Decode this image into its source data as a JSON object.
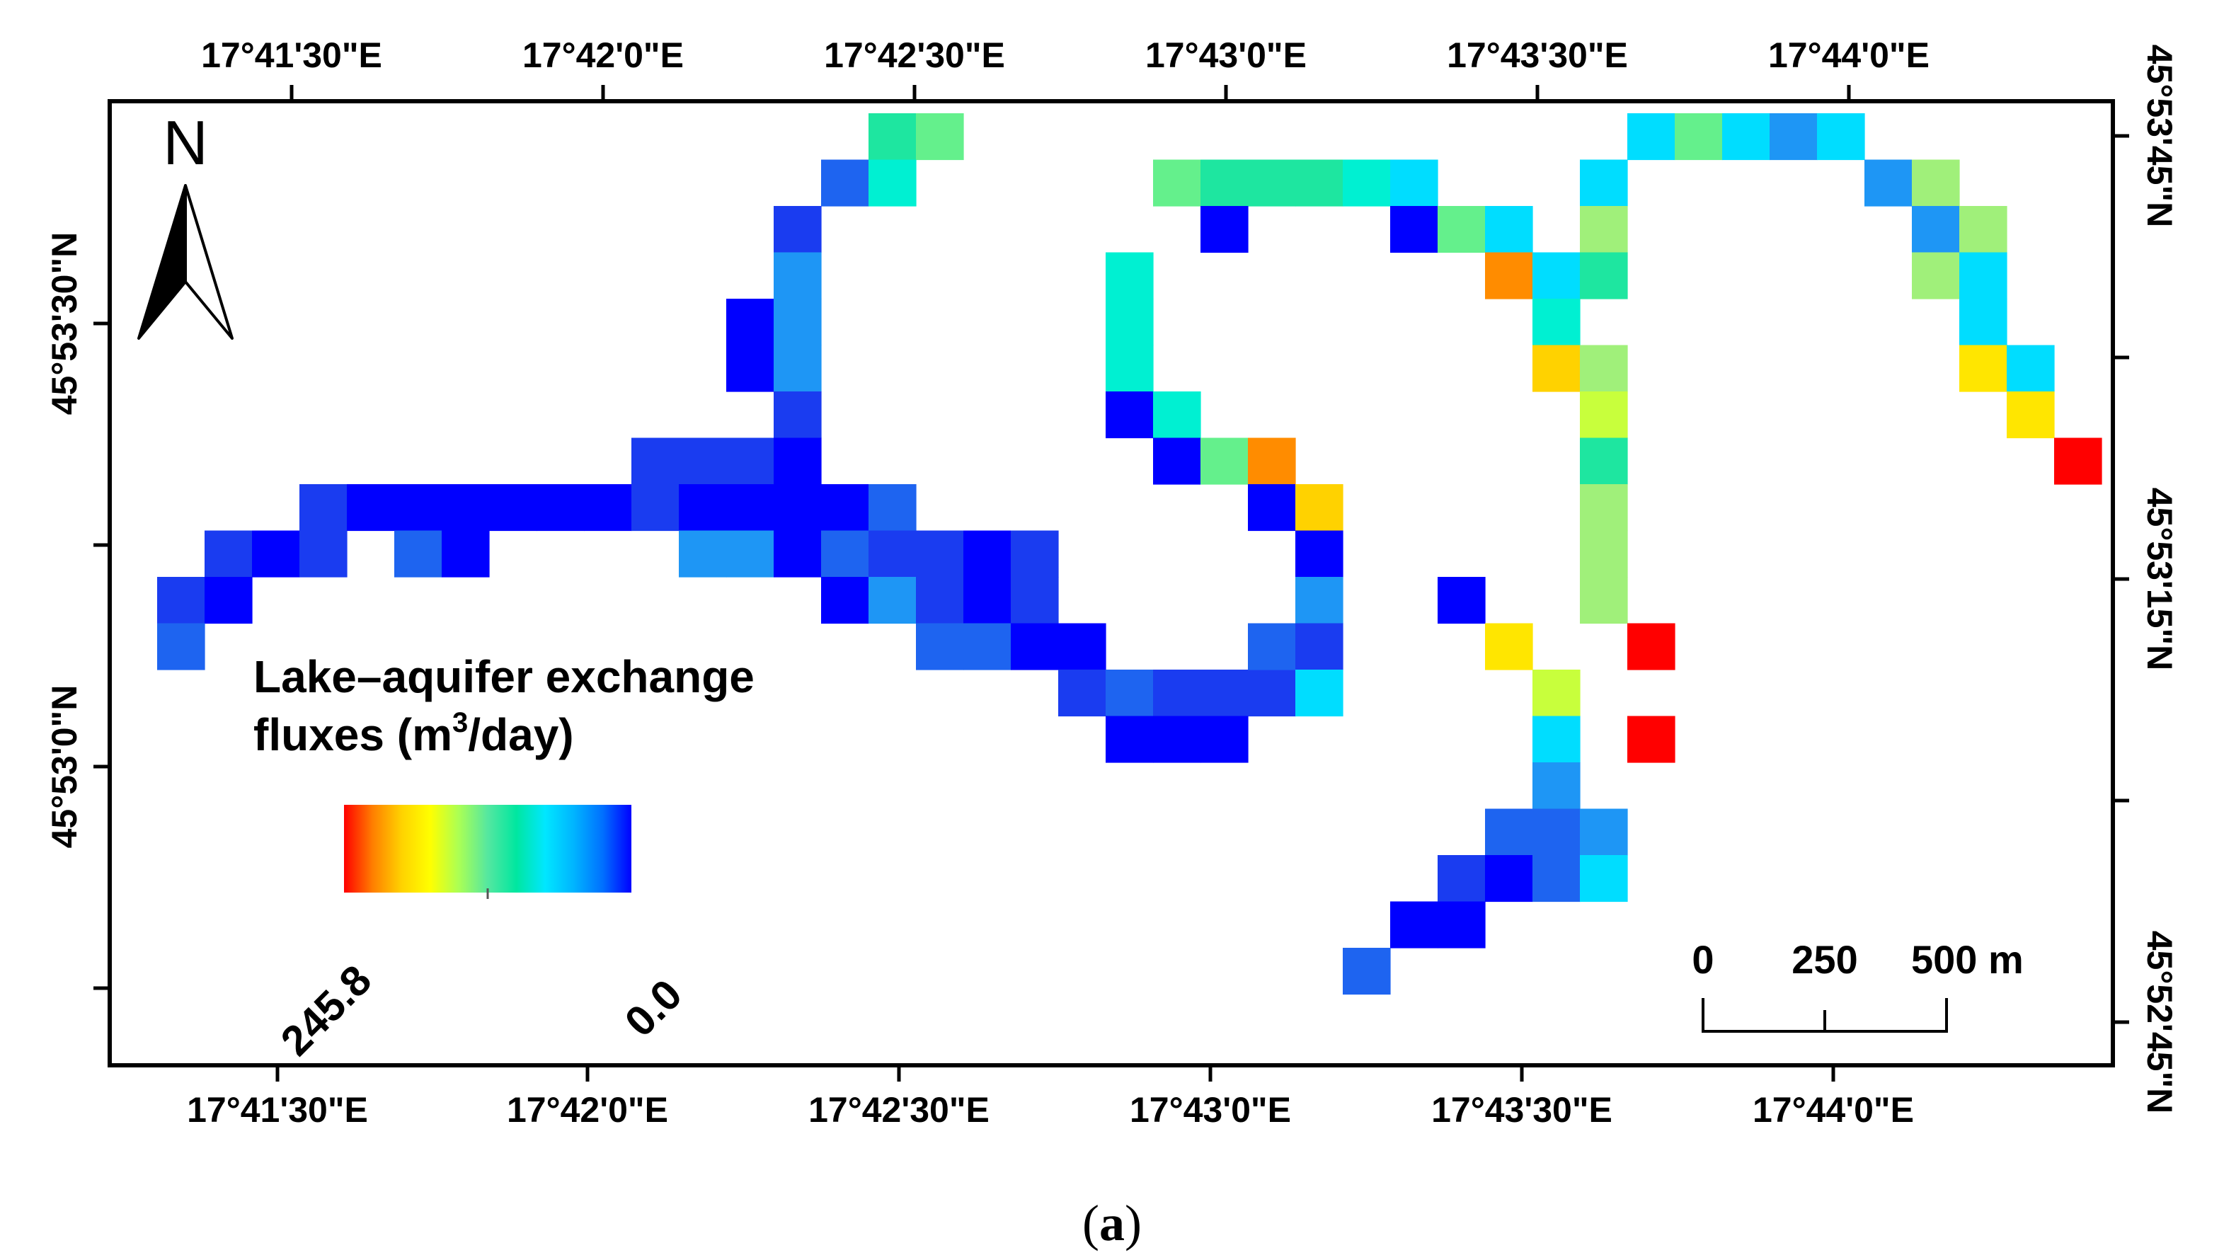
{
  "figure": {
    "caption_open": "(",
    "caption_letter": "a",
    "caption_close": ")"
  },
  "axes": {
    "top_ticks": [
      "17°41'30\"E",
      "17°42'0\"E",
      "17°42'30\"E",
      "17°43'0\"E",
      "17°43'30\"E",
      "17°44'0\"E"
    ],
    "bottom_ticks": [
      "17°41'30\"E",
      "17°42'0\"E",
      "17°42'30\"E",
      "17°43'0\"E",
      "17°43'30\"E",
      "17°44'0\"E"
    ],
    "left_ticks": [
      "45°53'30\"N",
      "45°53'0\"N"
    ],
    "right_ticks": [
      "45°53'45\"N",
      "45°53'15\"N",
      "45°52'45\"N"
    ]
  },
  "legend": {
    "title_line1": "Lake–aquifer exchange",
    "title_line2_prefix": "fluxes (m",
    "title_sup": "3",
    "title_line2_suffix": "/day)",
    "max_label": "245.8",
    "min_label": "0.0",
    "gradient_colors": [
      "#ff0000",
      "#ff7f00",
      "#ffd200",
      "#ffff00",
      "#aaff55",
      "#55e7a0",
      "#00e7a0",
      "#00e7ff",
      "#00b4ff",
      "#0070ff",
      "#0000ff"
    ]
  },
  "north_arrow": {
    "label": "N",
    "icon": "north-arrow-icon"
  },
  "scale_bar": {
    "labels": [
      "0",
      "250",
      "500 m"
    ]
  },
  "flux_grid": {
    "max_value": 245.8,
    "colors": {
      "blue": "#0000ff",
      "royal": "#1a3cf0",
      "mid": "#1e64f0",
      "sky": "#1e96f5",
      "cyan": "#00ddff",
      "aqua": "#00f0d2",
      "teal": "#1ee6a0",
      "green": "#64f08c",
      "lime": "#a0f07a",
      "yelgreen": "#c8ff3c",
      "yellow": "#ffd200",
      "yellow2": "#ffe600",
      "orange": "#ff8c00",
      "red": "#ff0000"
    },
    "cells": [
      [
        15,
        0,
        "teal"
      ],
      [
        16,
        0,
        "green"
      ],
      [
        14,
        1,
        "mid"
      ],
      [
        15,
        1,
        "aqua"
      ],
      [
        13,
        2,
        "royal"
      ],
      [
        13,
        3,
        "sky"
      ],
      [
        12,
        4,
        "blue"
      ],
      [
        13,
        4,
        "sky"
      ],
      [
        12,
        5,
        "blue"
      ],
      [
        13,
        5,
        "sky"
      ],
      [
        13,
        6,
        "royal"
      ],
      [
        10,
        7,
        "royal"
      ],
      [
        11,
        7,
        "royal"
      ],
      [
        12,
        7,
        "royal"
      ],
      [
        13,
        7,
        "blue"
      ],
      [
        3,
        8,
        "royal"
      ],
      [
        4,
        8,
        "blue"
      ],
      [
        5,
        8,
        "blue"
      ],
      [
        6,
        8,
        "blue"
      ],
      [
        7,
        8,
        "blue"
      ],
      [
        8,
        8,
        "blue"
      ],
      [
        9,
        8,
        "blue"
      ],
      [
        10,
        8,
        "royal"
      ],
      [
        11,
        8,
        "blue"
      ],
      [
        12,
        8,
        "blue"
      ],
      [
        13,
        8,
        "blue"
      ],
      [
        14,
        8,
        "blue"
      ],
      [
        15,
        8,
        "mid"
      ],
      [
        1,
        9,
        "royal"
      ],
      [
        2,
        9,
        "blue"
      ],
      [
        3,
        9,
        "royal"
      ],
      [
        5,
        9,
        "mid"
      ],
      [
        6,
        9,
        "blue"
      ],
      [
        11,
        9,
        "sky"
      ],
      [
        12,
        9,
        "sky"
      ],
      [
        13,
        9,
        "blue"
      ],
      [
        14,
        9,
        "mid"
      ],
      [
        15,
        9,
        "royal"
      ],
      [
        16,
        9,
        "royal"
      ],
      [
        17,
        9,
        "blue"
      ],
      [
        18,
        9,
        "royal"
      ],
      [
        0,
        10,
        "royal"
      ],
      [
        1,
        10,
        "blue"
      ],
      [
        14,
        10,
        "blue"
      ],
      [
        15,
        10,
        "sky"
      ],
      [
        16,
        10,
        "royal"
      ],
      [
        17,
        10,
        "blue"
      ],
      [
        18,
        10,
        "royal"
      ],
      [
        0,
        11,
        "mid"
      ],
      [
        16,
        11,
        "mid"
      ],
      [
        17,
        11,
        "mid"
      ],
      [
        18,
        11,
        "blue"
      ],
      [
        19,
        11,
        "blue"
      ],
      [
        19,
        12,
        "royal"
      ],
      [
        20,
        12,
        "mid"
      ],
      [
        21,
        12,
        "royal"
      ],
      [
        22,
        12,
        "royal"
      ],
      [
        23,
        12,
        "royal"
      ],
      [
        20,
        13,
        "blue"
      ],
      [
        21,
        13,
        "blue"
      ],
      [
        22,
        13,
        "blue"
      ],
      [
        21,
        1,
        "green"
      ],
      [
        22,
        1,
        "teal"
      ],
      [
        23,
        1,
        "teal"
      ],
      [
        24,
        1,
        "teal"
      ],
      [
        25,
        1,
        "aqua"
      ],
      [
        26,
        1,
        "cyan"
      ],
      [
        22,
        2,
        "blue"
      ],
      [
        26,
        2,
        "blue"
      ],
      [
        27,
        2,
        "green"
      ],
      [
        28,
        2,
        "cyan"
      ],
      [
        20,
        3,
        "aqua"
      ],
      [
        20,
        4,
        "aqua"
      ],
      [
        20,
        5,
        "aqua"
      ],
      [
        20,
        6,
        "blue"
      ],
      [
        21,
        6,
        "aqua"
      ],
      [
        21,
        7,
        "blue"
      ],
      [
        22,
        7,
        "green"
      ],
      [
        23,
        7,
        "orange"
      ],
      [
        23,
        8,
        "blue"
      ],
      [
        24,
        8,
        "yellow"
      ],
      [
        24,
        9,
        "blue"
      ],
      [
        24,
        10,
        "sky"
      ],
      [
        23,
        11,
        "mid"
      ],
      [
        24,
        11,
        "royal"
      ],
      [
        24,
        12,
        "cyan"
      ],
      [
        28,
        3,
        "orange"
      ],
      [
        29,
        3,
        "cyan"
      ],
      [
        29,
        4,
        "aqua"
      ],
      [
        29,
        5,
        "yellow"
      ],
      [
        30,
        1,
        "cyan"
      ],
      [
        30,
        2,
        "lime"
      ],
      [
        30,
        3,
        "teal"
      ],
      [
        30,
        5,
        "lime"
      ],
      [
        30,
        6,
        "yelgreen"
      ],
      [
        30,
        7,
        "teal"
      ],
      [
        30,
        8,
        "lime"
      ],
      [
        30,
        9,
        "lime"
      ],
      [
        30,
        10,
        "lime"
      ],
      [
        27,
        10,
        "blue"
      ],
      [
        28,
        11,
        "yellow2"
      ],
      [
        29,
        12,
        "yelgreen"
      ],
      [
        29,
        13,
        "cyan"
      ],
      [
        29,
        14,
        "sky"
      ],
      [
        28,
        15,
        "mid"
      ],
      [
        29,
        15,
        "mid"
      ],
      [
        30,
        15,
        "sky"
      ],
      [
        27,
        16,
        "royal"
      ],
      [
        28,
        16,
        "blue"
      ],
      [
        29,
        16,
        "mid"
      ],
      [
        30,
        16,
        "cyan"
      ],
      [
        26,
        17,
        "blue"
      ],
      [
        27,
        17,
        "blue"
      ],
      [
        25,
        18,
        "mid"
      ],
      [
        31,
        11,
        "red"
      ],
      [
        31,
        13,
        "red"
      ],
      [
        31,
        0,
        "cyan"
      ],
      [
        32,
        0,
        "green"
      ],
      [
        33,
        0,
        "cyan"
      ],
      [
        34,
        0,
        "sky"
      ],
      [
        35,
        0,
        "cyan"
      ],
      [
        36,
        1,
        "sky"
      ],
      [
        37,
        1,
        "lime"
      ],
      [
        37,
        2,
        "sky"
      ],
      [
        38,
        2,
        "lime"
      ],
      [
        37,
        3,
        "lime"
      ],
      [
        38,
        3,
        "cyan"
      ],
      [
        38,
        4,
        "cyan"
      ],
      [
        38,
        5,
        "yellow2"
      ],
      [
        39,
        5,
        "cyan"
      ],
      [
        39,
        6,
        "yellow2"
      ],
      [
        40,
        7,
        "red"
      ]
    ]
  }
}
